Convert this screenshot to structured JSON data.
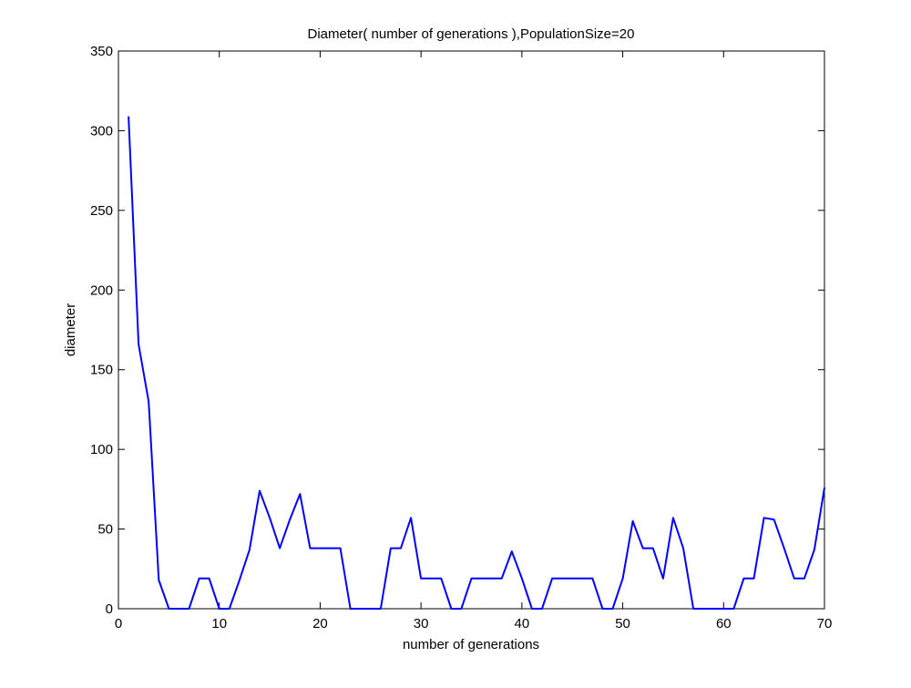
{
  "chart_data": {
    "type": "line",
    "title": "Diameter( number of generations ),PopulationSize=20",
    "xlabel": "number of generations",
    "ylabel": "diameter",
    "xlim": [
      0,
      70
    ],
    "ylim": [
      0,
      350
    ],
    "xticks": [
      0,
      10,
      20,
      30,
      40,
      50,
      60,
      70
    ],
    "yticks": [
      0,
      50,
      100,
      150,
      200,
      250,
      300,
      350
    ],
    "grid": false,
    "line_color": "#0000ff",
    "series": [
      {
        "x": [
          1,
          2,
          3,
          4,
          5,
          6,
          7,
          8,
          9,
          10,
          11,
          12,
          13,
          14,
          15,
          16,
          17,
          18,
          19,
          20,
          21,
          22,
          23,
          24,
          25,
          26,
          27,
          28,
          29,
          30,
          31,
          32,
          33,
          34,
          35,
          36,
          37,
          38,
          39,
          40,
          41,
          42,
          43,
          44,
          45,
          46,
          47,
          48,
          49,
          50,
          51,
          52,
          53,
          54,
          55,
          56,
          57,
          58,
          59,
          60,
          61,
          62,
          63,
          64,
          65,
          66,
          67,
          68,
          69,
          70
        ],
        "y": [
          309,
          166,
          130,
          18,
          0,
          0,
          0,
          19,
          19,
          0,
          0,
          18,
          37,
          74,
          57,
          38,
          56,
          72,
          38,
          38,
          38,
          38,
          0,
          0,
          0,
          0,
          38,
          38,
          57,
          19,
          19,
          19,
          0,
          0,
          19,
          19,
          19,
          19,
          36,
          19,
          0,
          0,
          19,
          19,
          19,
          19,
          19,
          0,
          0,
          19,
          55,
          38,
          38,
          19,
          57,
          38,
          0,
          0,
          0,
          0,
          0,
          19,
          19,
          57,
          56,
          38,
          19,
          19,
          37,
          76
        ]
      }
    ]
  }
}
